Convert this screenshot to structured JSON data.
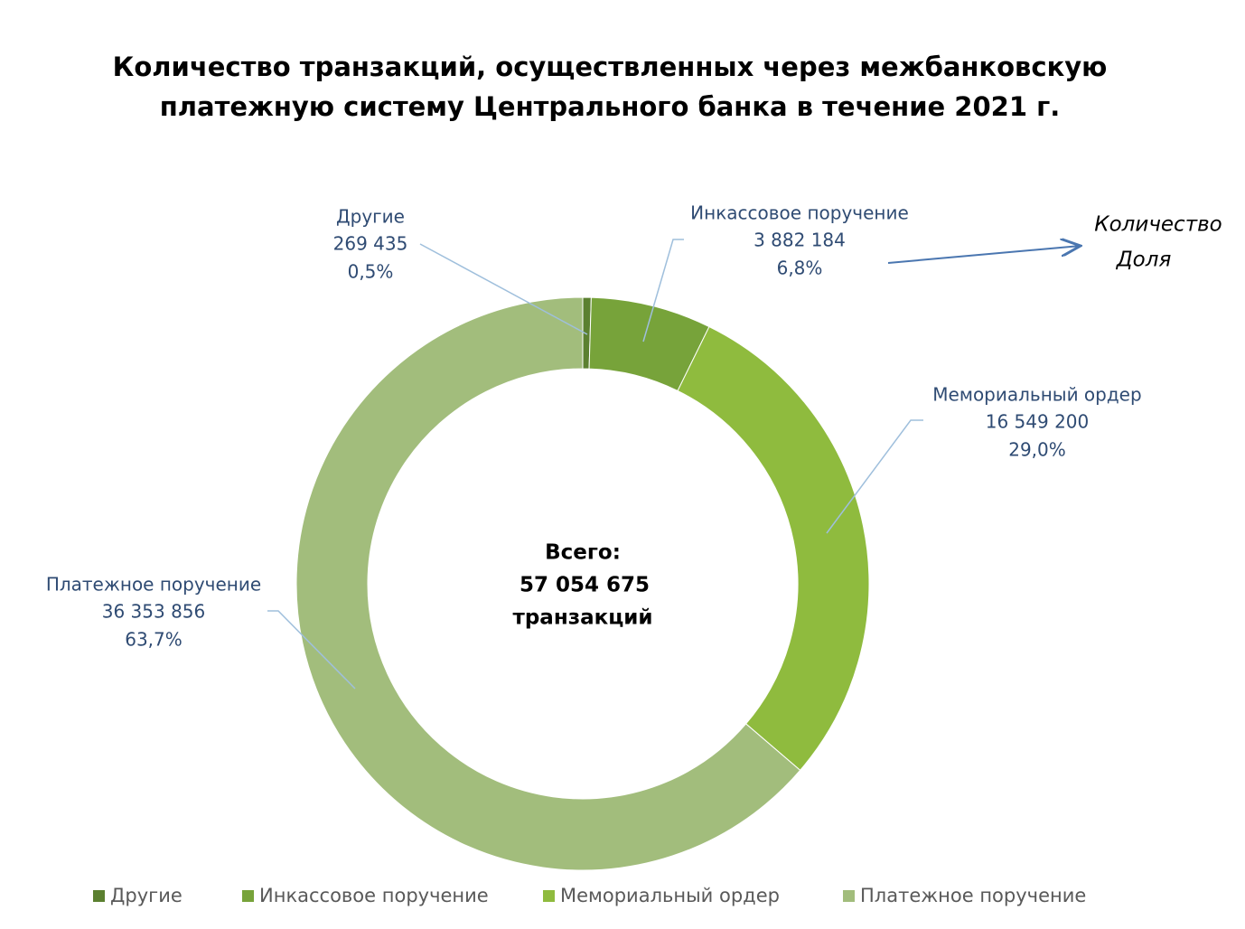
{
  "chart_data": {
    "type": "donut",
    "title": "Количество транзакций, осуществленных через межбанковскую платежную систему Центрального банка в течение 2021 г.",
    "categories": [
      "Другие",
      "Инкассовое поручение",
      "Мемориальный ордер",
      "Платежное поручение"
    ],
    "values": [
      269435,
      3882184,
      16549200,
      36353856
    ],
    "value_labels": [
      "269 435",
      "3 882 184",
      "16 549 200",
      "36 353 856"
    ],
    "shares": [
      0.5,
      6.8,
      29.0,
      63.7
    ],
    "share_labels": [
      "0,5%",
      "6,8%",
      "29,0%",
      "63,7%"
    ],
    "colors": [
      "#5b8030",
      "#77a33a",
      "#8fbb3e",
      "#a2bd7c"
    ],
    "total": {
      "label": "Всего:",
      "value": 57054675,
      "value_label": "57 054 675",
      "unit": "транзакций"
    },
    "annotation": [
      "Количество",
      "Доля"
    ],
    "legend": "bottom"
  }
}
